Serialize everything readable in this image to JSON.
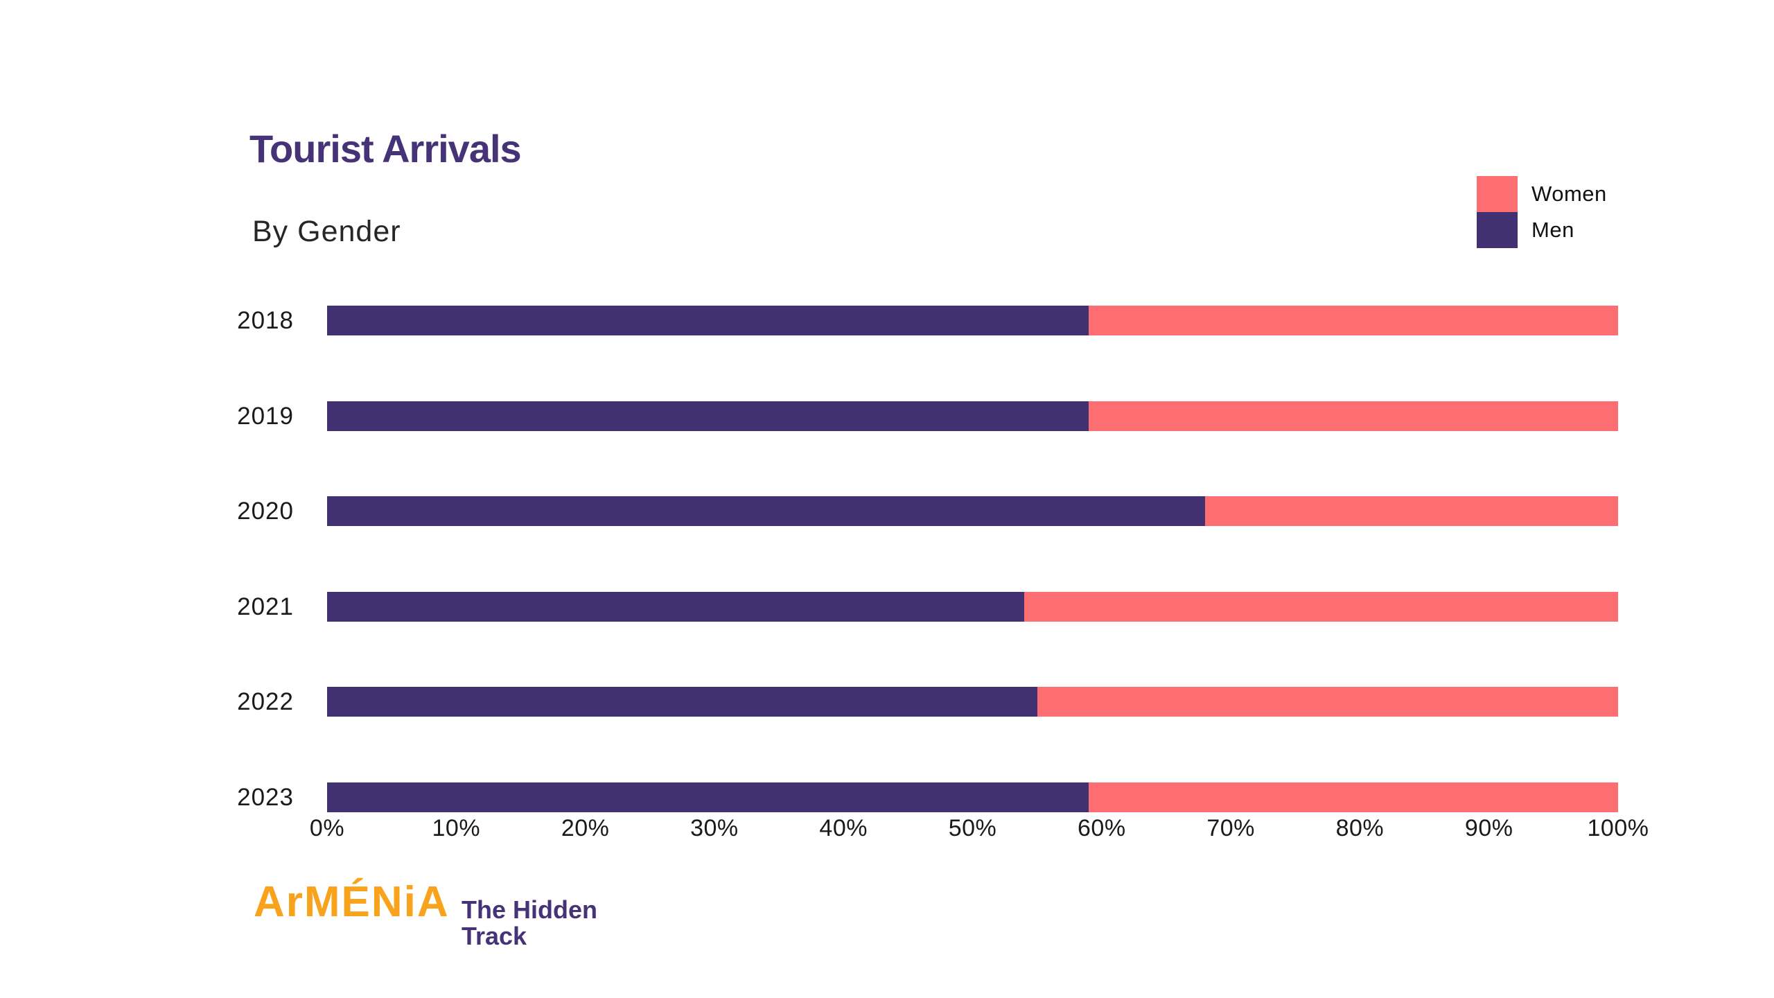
{
  "title": "Tourist Arrivals",
  "subtitle": "By Gender",
  "legend": [
    {
      "label": "Women",
      "color": "#FD6E73"
    },
    {
      "label": "Men",
      "color": "#413173"
    }
  ],
  "chart_data": {
    "type": "bar",
    "orientation": "horizontal",
    "stacked": true,
    "title": "Tourist Arrivals",
    "subtitle": "By Gender",
    "categories": [
      "2018",
      "2019",
      "2020",
      "2021",
      "2022",
      "2023"
    ],
    "series": [
      {
        "name": "Men",
        "color": "#413173",
        "values": [
          59,
          59,
          68,
          54,
          55,
          59
        ]
      },
      {
        "name": "Women",
        "color": "#FD6E73",
        "values": [
          41,
          41,
          32,
          46,
          45,
          41
        ]
      }
    ],
    "value_unit": "%",
    "xlim": [
      0,
      100
    ],
    "x_ticks": [
      "0%",
      "10%",
      "20%",
      "30%",
      "40%",
      "50%",
      "60%",
      "70%",
      "80%",
      "90%",
      "100%"
    ],
    "grid": false,
    "legend_position": "top-right"
  },
  "footer": {
    "brand_primary": "ArMÉNiA",
    "brand_secondary_line1": "The Hidden",
    "brand_secondary_line2": "Track",
    "primary_color": "#F9A21B",
    "secondary_color": "#453277"
  }
}
